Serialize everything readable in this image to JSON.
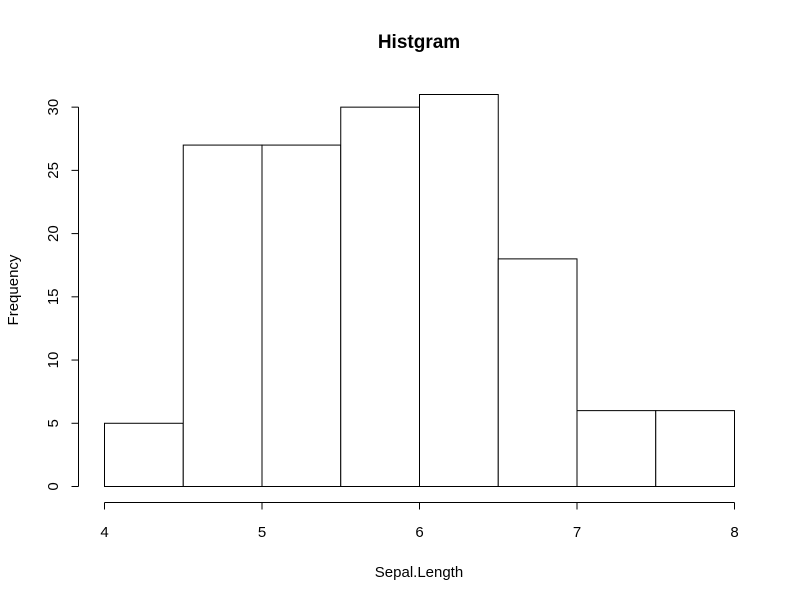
{
  "chart_data": {
    "type": "bar",
    "title": "Histgram",
    "xlabel": "Sepal.Length",
    "ylabel": "Frequency",
    "bins": [
      {
        "start": 4.0,
        "end": 4.5,
        "value": 5
      },
      {
        "start": 4.5,
        "end": 5.0,
        "value": 27
      },
      {
        "start": 5.0,
        "end": 5.5,
        "value": 27
      },
      {
        "start": 5.5,
        "end": 6.0,
        "value": 30
      },
      {
        "start": 6.0,
        "end": 6.5,
        "value": 31
      },
      {
        "start": 6.5,
        "end": 7.0,
        "value": 18
      },
      {
        "start": 7.0,
        "end": 7.5,
        "value": 6
      },
      {
        "start": 7.5,
        "end": 8.0,
        "value": 6
      }
    ],
    "xlim": [
      4,
      8
    ],
    "ylim": [
      0,
      31
    ],
    "x_ticks": [
      "4",
      "5",
      "6",
      "7",
      "8"
    ],
    "y_ticks": [
      "0",
      "5",
      "10",
      "15",
      "20",
      "25",
      "30"
    ],
    "grid": false,
    "bar_fill": "#ffffff",
    "bar_stroke": "#000000"
  }
}
